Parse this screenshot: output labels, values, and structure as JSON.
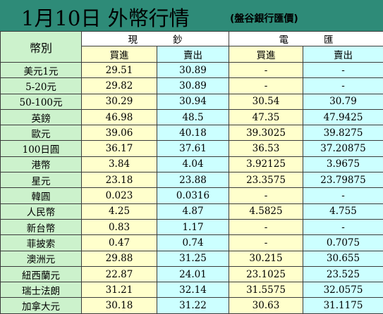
{
  "title": "1月10日 外幣行情",
  "subtitle": "(盤谷銀行匯價)",
  "headers": {
    "currency": "幣別",
    "cash": "現鈔",
    "telegraphic": "電匯",
    "buy": "買進",
    "sell": "賣出"
  },
  "rows": [
    {
      "name": "美元1元",
      "cash_buy": "29.51",
      "cash_sell": "30.89",
      "tt_buy": "-",
      "tt_sell": "-"
    },
    {
      "name": "5-20元",
      "cash_buy": "29.82",
      "cash_sell": "30.89",
      "tt_buy": "-",
      "tt_sell": "-"
    },
    {
      "name": "50-100元",
      "cash_buy": "30.29",
      "cash_sell": "30.94",
      "tt_buy": "30.54",
      "tt_sell": "30.79"
    },
    {
      "name": "英鎊",
      "cash_buy": "46.98",
      "cash_sell": "48.5",
      "tt_buy": "47.35",
      "tt_sell": "47.9425"
    },
    {
      "name": "歐元",
      "cash_buy": "39.06",
      "cash_sell": "40.18",
      "tt_buy": "39.3025",
      "tt_sell": "39.8275"
    },
    {
      "name": "100日圓",
      "cash_buy": "36.17",
      "cash_sell": "37.61",
      "tt_buy": "36.53",
      "tt_sell": "37.20875"
    },
    {
      "name": "港幣",
      "cash_buy": "3.84",
      "cash_sell": "4.04",
      "tt_buy": "3.92125",
      "tt_sell": "3.9675"
    },
    {
      "name": "星元",
      "cash_buy": "23.18",
      "cash_sell": "23.88",
      "tt_buy": "23.3575",
      "tt_sell": "23.79875"
    },
    {
      "name": "韓圓",
      "cash_buy": "0.023",
      "cash_sell": "0.0316",
      "tt_buy": "-",
      "tt_sell": "-"
    },
    {
      "name": "人民幣",
      "cash_buy": "4.25",
      "cash_sell": "4.87",
      "tt_buy": "4.5825",
      "tt_sell": "4.755"
    },
    {
      "name": "新台幣",
      "cash_buy": "0.83",
      "cash_sell": "1.17",
      "tt_buy": "-",
      "tt_sell": "-"
    },
    {
      "name": "菲披索",
      "cash_buy": "0.47",
      "cash_sell": "0.74",
      "tt_buy": "-",
      "tt_sell": "0.7075"
    },
    {
      "name": "澳洲元",
      "cash_buy": "29.88",
      "cash_sell": "31.25",
      "tt_buy": "30.215",
      "tt_sell": "30.655"
    },
    {
      "name": "紐西蘭元",
      "cash_buy": "22.87",
      "cash_sell": "24.01",
      "tt_buy": "23.1025",
      "tt_sell": "23.525"
    },
    {
      "name": "瑞士法朗",
      "cash_buy": "31.21",
      "cash_sell": "32.14",
      "tt_buy": "31.5575",
      "tt_sell": "32.0575"
    },
    {
      "name": "加拿大元",
      "cash_buy": "30.18",
      "cash_sell": "31.22",
      "tt_buy": "30.63",
      "tt_sell": "31.1175"
    }
  ]
}
